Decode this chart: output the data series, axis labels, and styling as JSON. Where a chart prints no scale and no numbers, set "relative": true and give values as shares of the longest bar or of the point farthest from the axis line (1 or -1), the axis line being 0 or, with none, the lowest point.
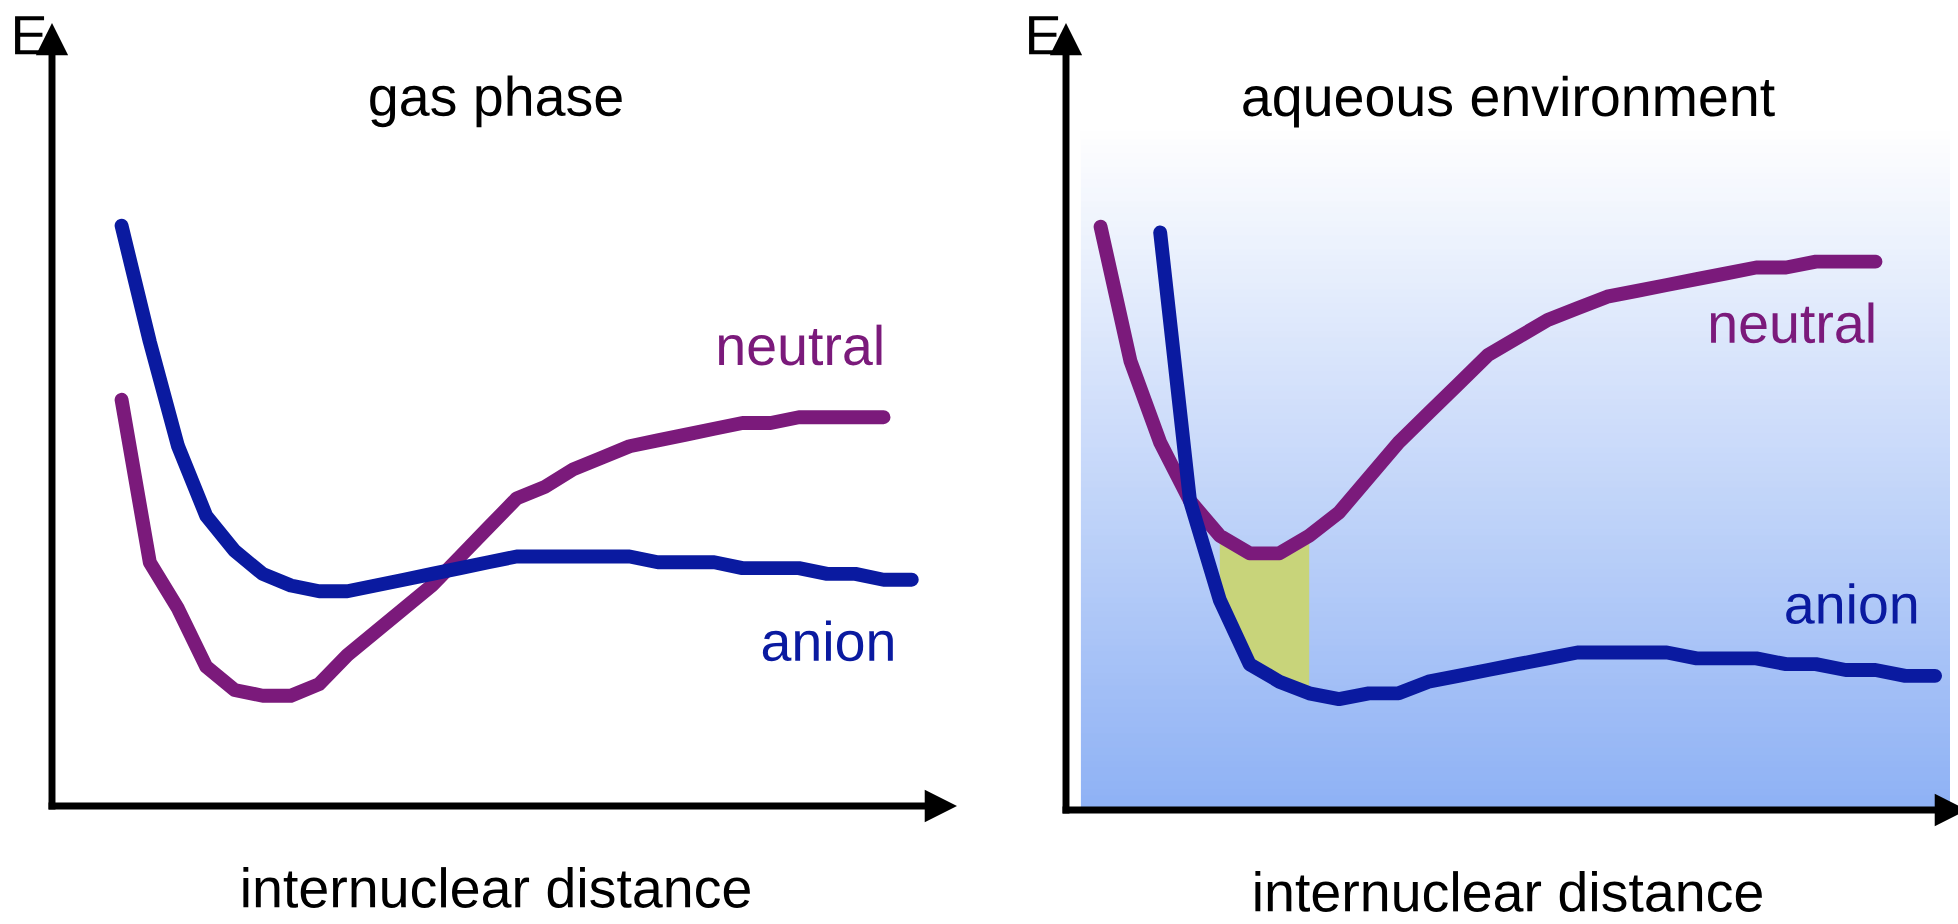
{
  "chart_data": [
    {
      "type": "line",
      "title": "gas phase",
      "xlabel": "internuclear distance",
      "ylabel": "E",
      "relative": true,
      "marker": "none",
      "line_style": "solid",
      "categories": [
        null,
        null,
        null,
        null,
        null,
        null,
        null,
        null,
        null,
        null,
        null,
        null,
        null,
        null,
        null,
        null,
        null,
        null,
        null,
        null,
        null,
        null,
        null,
        null,
        null,
        null,
        null,
        null,
        null
      ],
      "series": [
        {
          "name": "neutral",
          "color": "#7b1a7b",
          "values": [
            0.7,
            0.42,
            0.34,
            0.24,
            0.2,
            0.19,
            0.19,
            0.21,
            0.26,
            0.3,
            0.34,
            0.38,
            0.43,
            0.48,
            0.53,
            0.55,
            0.58,
            0.6,
            0.62,
            0.63,
            0.64,
            0.65,
            0.66,
            0.66,
            0.67,
            0.67,
            0.67,
            0.67,
            null
          ]
        },
        {
          "name": "anion",
          "color": "#0a1aa0",
          "values": [
            1.0,
            0.8,
            0.62,
            0.5,
            0.44,
            0.4,
            0.38,
            0.37,
            0.37,
            0.38,
            0.39,
            0.4,
            0.41,
            0.42,
            0.43,
            0.43,
            0.43,
            0.43,
            0.43,
            0.42,
            0.42,
            0.42,
            0.41,
            0.41,
            0.41,
            0.4,
            0.4,
            0.39,
            0.39
          ]
        }
      ]
    },
    {
      "type": "line",
      "title": "aqueous environment",
      "xlabel": "internuclear distance",
      "ylabel": "E",
      "relative": true,
      "marker": "none",
      "line_style": "solid",
      "categories": [
        null,
        null,
        null,
        null,
        null,
        null,
        null,
        null,
        null,
        null,
        null,
        null,
        null,
        null,
        null,
        null,
        null,
        null,
        null,
        null,
        null,
        null,
        null,
        null,
        null,
        null,
        null,
        null,
        null
      ],
      "series": [
        {
          "name": "neutral",
          "color": "#7b1a7b",
          "values": [
            1.0,
            0.77,
            0.63,
            0.53,
            0.47,
            0.44,
            0.44,
            0.47,
            0.51,
            0.57,
            0.63,
            0.68,
            0.73,
            0.78,
            0.81,
            0.84,
            0.86,
            0.88,
            0.89,
            0.9,
            0.91,
            0.92,
            0.93,
            0.93,
            0.94,
            0.94,
            0.94,
            null,
            null
          ]
        },
        {
          "name": "anion",
          "color": "#0a1aa0",
          "values": [
            null,
            null,
            0.99,
            0.53,
            0.36,
            0.25,
            0.22,
            0.2,
            0.19,
            0.2,
            0.2,
            0.22,
            0.23,
            0.24,
            0.25,
            0.26,
            0.27,
            0.27,
            0.27,
            0.27,
            0.26,
            0.26,
            0.26,
            0.25,
            0.25,
            0.24,
            0.24,
            0.23,
            0.23
          ]
        },
        {
          "type": "area",
          "color": "#c8d47a",
          "values": [
            null,
            null,
            null,
            null,
            0.47,
            0.44,
            0.44,
            0.47,
            null,
            null,
            null,
            null,
            null,
            null,
            null,
            null,
            null,
            null,
            null,
            null,
            null,
            null,
            null,
            null,
            null,
            null,
            null,
            null,
            null
          ]
        }
      ]
    }
  ]
}
